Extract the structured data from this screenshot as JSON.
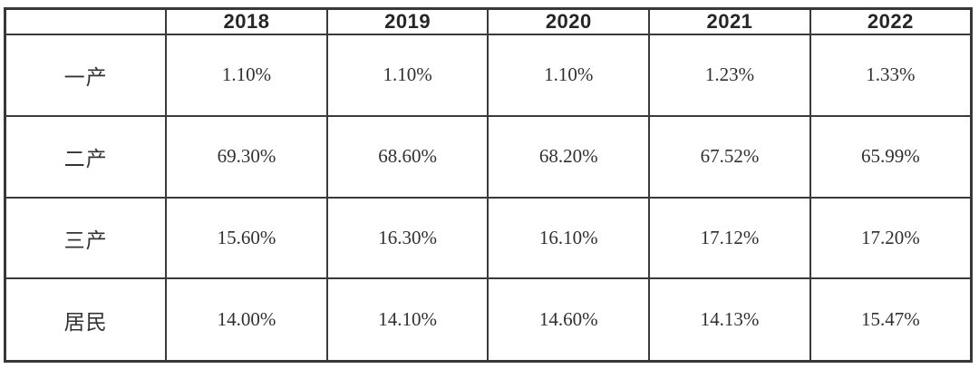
{
  "table": {
    "columns": [
      "",
      "2018",
      "2019",
      "2020",
      "2021",
      "2022"
    ],
    "rows": [
      {
        "label": "一产",
        "values": [
          "1.10%",
          "1.10%",
          "1.10%",
          "1.23%",
          "1.33%"
        ]
      },
      {
        "label": "二产",
        "values": [
          "69.30%",
          "68.60%",
          "68.20%",
          "67.52%",
          "65.99%"
        ]
      },
      {
        "label": "三产",
        "values": [
          "15.60%",
          "16.30%",
          "16.10%",
          "17.12%",
          "17.20%"
        ]
      },
      {
        "label": "居民",
        "values": [
          "14.00%",
          "14.10%",
          "14.60%",
          "14.13%",
          "15.47%"
        ]
      }
    ]
  },
  "chart_data": {
    "type": "table",
    "categories": [
      "2018",
      "2019",
      "2020",
      "2021",
      "2022"
    ],
    "series": [
      {
        "name": "一产",
        "values": [
          1.1,
          1.1,
          1.1,
          1.23,
          1.33
        ]
      },
      {
        "name": "二产",
        "values": [
          69.3,
          68.6,
          68.2,
          67.52,
          65.99
        ]
      },
      {
        "name": "三产",
        "values": [
          15.6,
          16.3,
          16.1,
          17.12,
          17.2
        ]
      },
      {
        "name": "居民",
        "values": [
          14.0,
          14.1,
          14.6,
          14.13,
          15.47
        ]
      }
    ],
    "unit": "%",
    "title": "",
    "xlabel": "",
    "ylabel": ""
  },
  "colors": {
    "border": "#3a3a3a",
    "header_text": "#262626",
    "body_text": "#303030",
    "background": "#ffffff"
  }
}
